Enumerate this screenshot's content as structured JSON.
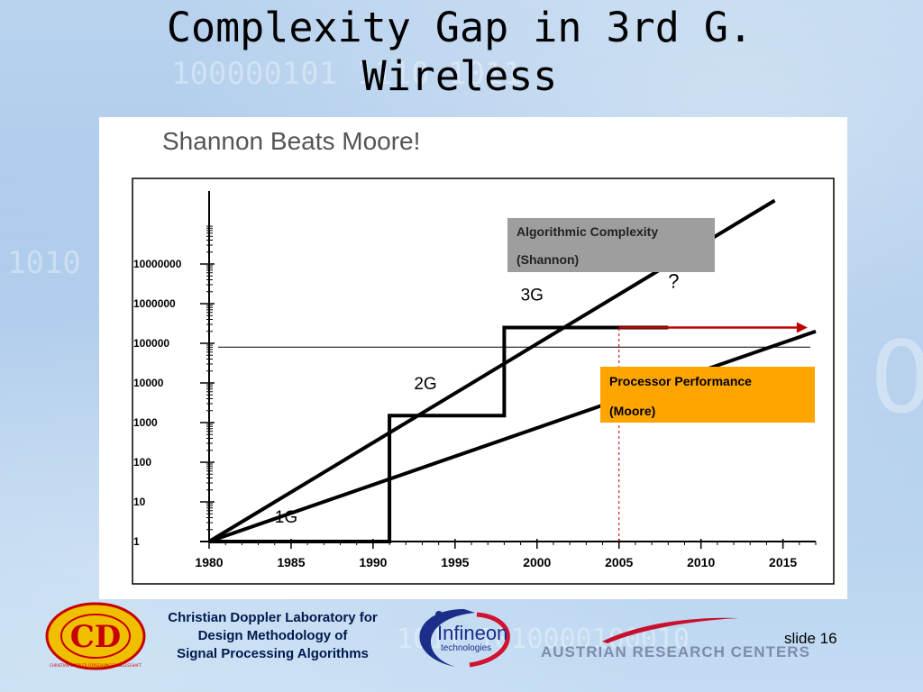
{
  "slide": {
    "title_line1": "Complexity Gap in 3rd G.",
    "title_line2": "Wireless",
    "slide_number": "slide 16"
  },
  "footer": {
    "lab_line1": "Christian Doppler Laboratory for",
    "lab_line2": "Design Methodology of",
    "lab_line3": "Signal Processing Algorithms",
    "cd_logo_letters": "CD",
    "cd_logo_ring_text": "CHRISTIAN DOPPLER FORSCHUNGSGESELLSCHAFT",
    "infineon_line1": "Infineon",
    "infineon_line2": "technologies",
    "arc_text": "AUSTRIAN RESEARCH CENTERS"
  },
  "background": {
    "binary_1": "100000101 1110 1011",
    "binary_2": "1010",
    "binary_3": "1011 1010000100010",
    "big_digit": "0"
  },
  "colors": {
    "algo_label_bg": "#9e9e9e",
    "moore_label_bg": "#ffa500",
    "gap_arrow": "#c00000",
    "series": "#000000"
  },
  "chart_data": {
    "type": "line",
    "title": "Shannon Beats Moore!",
    "y_scale": "log",
    "xlim": [
      1980,
      2017
    ],
    "ylim": [
      1,
      1000000000
    ],
    "x_ticks": [
      1980,
      1985,
      1990,
      1995,
      2000,
      2005,
      2010,
      2015
    ],
    "y_ticks": [
      {
        "value": 1,
        "label": "1"
      },
      {
        "value": 10,
        "label": "10"
      },
      {
        "value": 100,
        "label": "100"
      },
      {
        "value": 1000,
        "label": "1000"
      },
      {
        "value": 10000,
        "label": "10000"
      },
      {
        "value": 100000,
        "label": "100000"
      },
      {
        "value": 1000000,
        "label": "1000000"
      },
      {
        "value": 10000000,
        "label": "10000000"
      }
    ],
    "series": [
      {
        "name": "Algorithmic Complexity (Shannon)",
        "points": [
          [
            1980,
            1
          ],
          [
            2014.5,
            400000000
          ]
        ]
      },
      {
        "name": "Processor Performance (Moore)",
        "points": [
          [
            1980,
            1
          ],
          [
            2017,
            200000
          ]
        ]
      },
      {
        "name": "Generations",
        "points": [
          [
            1980,
            1
          ],
          [
            1991,
            1
          ],
          [
            1991,
            1500
          ],
          [
            1998,
            1500
          ],
          [
            1998,
            250000
          ],
          [
            2008,
            250000
          ]
        ]
      }
    ],
    "reference_line": {
      "y": 80000,
      "from": 1980,
      "to": 2017
    },
    "gap_marker": {
      "x": 2005,
      "y_from": 1,
      "y_to": 250000
    },
    "gap_arrow": {
      "from": 2005,
      "to": 2016.5,
      "y": 250000
    },
    "step_labels": [
      {
        "text": "1G",
        "x": 1984,
        "y": 3
      },
      {
        "text": "2G",
        "x": 1992.5,
        "y": 7000
      },
      {
        "text": "3G",
        "x": 1999,
        "y": 1200000
      },
      {
        "text": "?",
        "x": 2008,
        "y": 2500000
      }
    ],
    "annotations": [
      {
        "line1": "Algorithmic Complexity",
        "line2": "(Shannon)"
      },
      {
        "line1": "Processor Performance",
        "line2": "(Moore)"
      }
    ],
    "grid": false,
    "legend": "none"
  }
}
